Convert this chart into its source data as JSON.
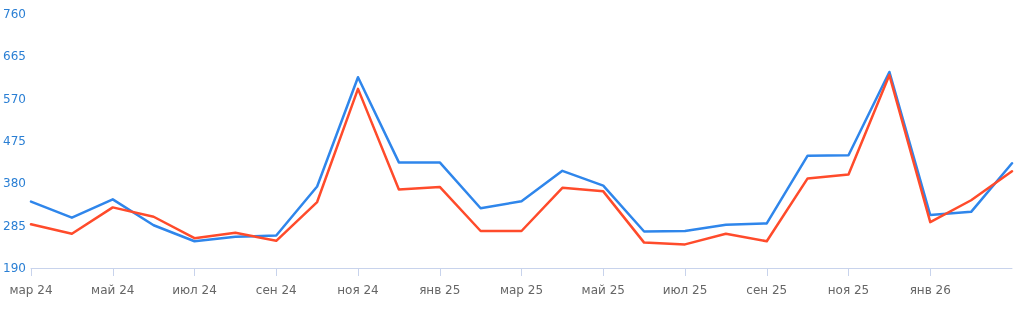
{
  "chart_data": {
    "type": "line",
    "categories": [
      "мар 24",
      null,
      "май 24",
      null,
      "июл 24",
      null,
      "сен 24",
      null,
      "ноя 24",
      null,
      "янв 25",
      null,
      "мар 25",
      null,
      "май 25",
      null,
      "июл 25",
      null,
      "сен 25",
      null,
      "ноя 25",
      null,
      "янв 26",
      null,
      null
    ],
    "series": [
      {
        "color": "#2f86eb",
        "values": [
          339,
          303,
          344,
          286,
          250,
          260,
          263,
          373,
          618,
          427,
          427,
          324,
          340,
          408,
          375,
          272,
          273,
          287,
          290,
          442,
          443,
          630,
          309,
          316,
          425
        ]
      },
      {
        "color": "#ff4b2b",
        "values": [
          288,
          267,
          326,
          305,
          257,
          269,
          251,
          338,
          592,
          366,
          372,
          273,
          273,
          370,
          362,
          247,
          243,
          267,
          250,
          391,
          400,
          623,
          293,
          342,
          407
        ]
      }
    ],
    "ylim": [
      190,
      760
    ],
    "yticks": [
      190,
      285,
      380,
      475,
      570,
      665,
      760
    ],
    "grid": false,
    "marker": "none",
    "line_style": "solid"
  }
}
